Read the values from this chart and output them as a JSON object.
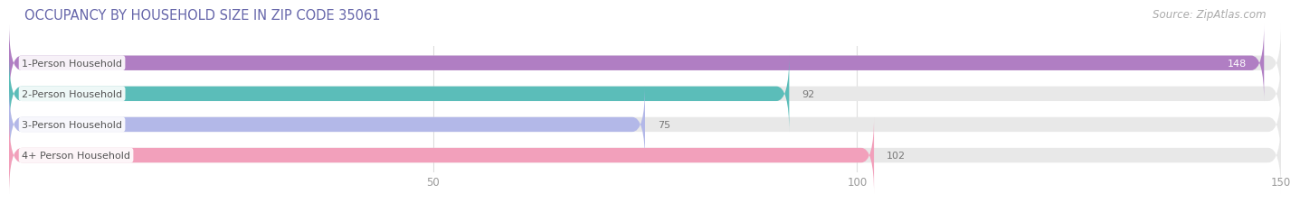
{
  "title": "OCCUPANCY BY HOUSEHOLD SIZE IN ZIP CODE 35061",
  "source": "Source: ZipAtlas.com",
  "categories": [
    "1-Person Household",
    "2-Person Household",
    "3-Person Household",
    "4+ Person Household"
  ],
  "values": [
    148,
    92,
    75,
    102
  ],
  "bar_colors": [
    "#b07ec3",
    "#5bbdb9",
    "#b3b8e8",
    "#f2a0bb"
  ],
  "background_color": "#ffffff",
  "bar_bg_color": "#e8e8e8",
  "xlim": [
    0,
    150
  ],
  "xticks": [
    50,
    100,
    150
  ],
  "title_fontsize": 10.5,
  "source_fontsize": 8.5,
  "label_fontsize": 8,
  "value_fontsize": 8,
  "tick_fontsize": 8.5,
  "bar_height": 0.48,
  "value_inside_color": "#ffffff",
  "value_outside_color": "#777777",
  "label_text_color": "#555555",
  "title_color": "#6666aa",
  "source_color": "#aaaaaa",
  "grid_color": "#dddddd"
}
